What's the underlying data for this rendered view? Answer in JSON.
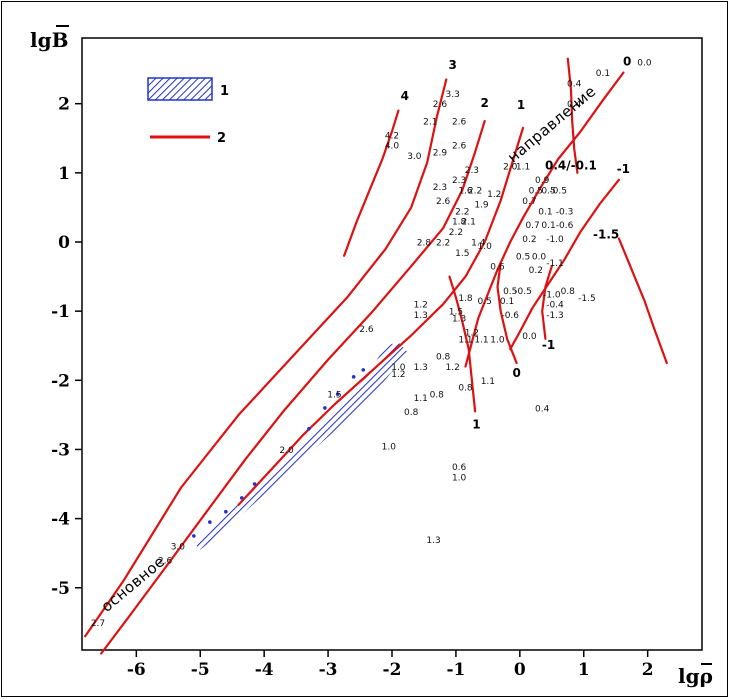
{
  "chart_data": {
    "type": "line",
    "xlabel": "lgρ",
    "ylabel": "lgB",
    "xlim": [
      -6.85,
      2.85
    ],
    "ylim": [
      -5.9,
      2.95
    ],
    "x_ticks": [
      -6,
      -5,
      -4,
      -3,
      -2,
      -1,
      0,
      1,
      2
    ],
    "y_ticks": [
      2,
      1,
      0,
      -1,
      -2,
      -3,
      -4,
      -5
    ],
    "colors": {
      "curve": "#dd1111",
      "hatch": "#2233cc",
      "text": "#000000"
    },
    "legend": [
      {
        "marker": "hatch",
        "label": "1"
      },
      {
        "marker": "line",
        "label": "2"
      }
    ],
    "side_labels": [
      {
        "text": "основное",
        "x": -6.0,
        "y": -5.0,
        "angle_deg": -40
      },
      {
        "text": "направление",
        "x": 0.55,
        "y": 1.65,
        "angle_deg": -40
      }
    ],
    "series": [
      {
        "name": "4",
        "label_x": -1.8,
        "label_y": 2.05,
        "points": [
          [
            -1.9,
            1.9
          ],
          [
            -2.0,
            1.6
          ],
          [
            -2.15,
            1.2
          ],
          [
            -2.35,
            0.75
          ],
          [
            -2.55,
            0.3
          ],
          [
            -2.75,
            -0.2
          ]
        ]
      },
      {
        "name": "3",
        "label_x": -1.05,
        "label_y": 2.5,
        "points": [
          [
            -1.15,
            2.35
          ],
          [
            -1.3,
            1.8
          ],
          [
            -1.45,
            1.15
          ],
          [
            -1.7,
            0.5
          ],
          [
            -2.1,
            -0.1
          ],
          [
            -2.7,
            -0.8
          ],
          [
            -3.5,
            -1.6
          ],
          [
            -4.4,
            -2.5
          ],
          [
            -5.3,
            -3.55
          ],
          [
            -6.2,
            -4.9
          ],
          [
            -6.8,
            -5.7
          ]
        ]
      },
      {
        "name": "2",
        "label_x": -0.55,
        "label_y": 1.95,
        "points": [
          [
            -0.55,
            1.75
          ],
          [
            -0.7,
            1.3
          ],
          [
            -0.9,
            0.75
          ],
          [
            -1.2,
            0.2
          ],
          [
            -1.7,
            -0.35
          ],
          [
            -2.3,
            -1.0
          ],
          [
            -3.0,
            -1.7
          ],
          [
            -3.7,
            -2.45
          ],
          [
            -4.3,
            -3.15
          ],
          [
            -4.9,
            -3.9
          ],
          [
            -5.5,
            -4.65
          ],
          [
            -6.1,
            -5.4
          ],
          [
            -6.55,
            -5.95
          ]
        ]
      },
      {
        "name": "1",
        "label_x": 0.02,
        "label_y": 1.92,
        "points": [
          [
            0.05,
            1.65
          ],
          [
            -0.1,
            1.2
          ],
          [
            -0.3,
            0.6
          ],
          [
            -0.55,
            0.0
          ],
          [
            -0.85,
            -0.5
          ],
          [
            -1.2,
            -0.9
          ],
          [
            -1.7,
            -1.35
          ],
          [
            -2.3,
            -1.85
          ],
          [
            -2.9,
            -2.35
          ],
          [
            -3.4,
            -2.8
          ],
          [
            -3.9,
            -3.3
          ],
          [
            -4.4,
            -3.8
          ]
        ]
      },
      {
        "name": "0",
        "label_x": 1.68,
        "label_y": 2.55,
        "points": [
          [
            1.62,
            2.45
          ],
          [
            1.3,
            2.05
          ],
          [
            0.95,
            1.6
          ],
          [
            0.6,
            1.2
          ],
          [
            0.3,
            0.75
          ],
          [
            0.05,
            0.35
          ],
          [
            -0.15,
            0.0
          ],
          [
            -0.35,
            -0.4
          ],
          [
            -0.5,
            -0.75
          ],
          [
            -0.65,
            -1.1
          ],
          [
            -0.75,
            -1.45
          ],
          [
            -0.85,
            -1.8
          ]
        ]
      },
      {
        "name": "-1",
        "label_x": 1.62,
        "label_y": 1.0,
        "points": [
          [
            1.55,
            0.9
          ],
          [
            1.25,
            0.55
          ],
          [
            0.95,
            0.15
          ],
          [
            0.7,
            -0.25
          ],
          [
            0.45,
            -0.6
          ],
          [
            0.2,
            -0.95
          ],
          [
            0.0,
            -1.3
          ],
          [
            -0.15,
            -1.55
          ]
        ]
      },
      {
        "name": "-1.5",
        "label_x": 1.35,
        "label_y": 0.05,
        "points": [
          [
            1.55,
            0.05
          ],
          [
            1.75,
            -0.4
          ],
          [
            1.95,
            -0.85
          ],
          [
            2.1,
            -1.25
          ],
          [
            2.3,
            -1.75
          ]
        ]
      },
      {
        "name": "1 (lower)",
        "label_x": -0.68,
        "label_y": -2.7,
        "points": [
          [
            -0.7,
            -2.45
          ],
          [
            -0.75,
            -2.0
          ],
          [
            -0.8,
            -1.55
          ],
          [
            -0.9,
            -1.15
          ],
          [
            -1.0,
            -0.8
          ],
          [
            -1.1,
            -0.5
          ]
        ]
      },
      {
        "name": "0 (lower)",
        "label_x": -0.05,
        "label_y": -1.95,
        "points": [
          [
            -0.05,
            -1.75
          ],
          [
            -0.2,
            -1.4
          ],
          [
            -0.3,
            -1.0
          ],
          [
            -0.35,
            -0.65
          ],
          [
            -0.3,
            -0.3
          ]
        ]
      },
      {
        "name": "-1 (lower)",
        "label_x": 0.45,
        "label_y": -1.55,
        "points": [
          [
            0.4,
            -1.4
          ],
          [
            0.35,
            -1.0
          ],
          [
            0.4,
            -0.65
          ],
          [
            0.5,
            -0.35
          ]
        ]
      },
      {
        "name": "0.4/-0.1",
        "label_x": 0.8,
        "label_y": 1.05,
        "points": [
          [
            0.75,
            2.65
          ],
          [
            0.8,
            2.2
          ],
          [
            0.82,
            1.75
          ],
          [
            0.85,
            1.35
          ],
          [
            0.9,
            1.0
          ]
        ]
      }
    ],
    "hatched_band": [
      [
        -5.1,
        -4.35
      ],
      [
        -4.6,
        -3.95
      ],
      [
        -4.0,
        -3.45
      ],
      [
        -3.4,
        -2.9
      ],
      [
        -2.9,
        -2.45
      ],
      [
        -2.4,
        -1.95
      ],
      [
        -2.1,
        -1.5
      ],
      [
        -1.9,
        -1.45
      ],
      [
        -1.75,
        -1.6
      ],
      [
        -2.2,
        -2.1
      ],
      [
        -2.8,
        -2.65
      ],
      [
        -3.4,
        -3.15
      ],
      [
        -4.0,
        -3.65
      ],
      [
        -4.6,
        -4.15
      ],
      [
        -5.0,
        -4.45
      ]
    ],
    "dots": [
      [
        -5.1,
        -4.25
      ],
      [
        -4.85,
        -4.05
      ],
      [
        -4.6,
        -3.9
      ],
      [
        -4.35,
        -3.7
      ],
      [
        -4.15,
        -3.5
      ],
      [
        -3.3,
        -2.7
      ],
      [
        -3.05,
        -2.4
      ],
      [
        -2.85,
        -2.2
      ],
      [
        -2.6,
        -1.95
      ],
      [
        -2.45,
        -1.85
      ]
    ],
    "annotations": [
      {
        "t": "0.0",
        "x": 1.95,
        "y": 2.55
      },
      {
        "t": "0.1",
        "x": 1.3,
        "y": 2.4
      },
      {
        "t": "0.4",
        "x": 0.85,
        "y": 2.25
      },
      {
        "t": "0.4",
        "x": 0.85,
        "y": 1.95
      },
      {
        "t": "3.3",
        "x": -1.05,
        "y": 2.1
      },
      {
        "t": "2.6",
        "x": -1.25,
        "y": 1.95
      },
      {
        "t": "2.1",
        "x": -1.4,
        "y": 1.7
      },
      {
        "t": "2.6",
        "x": -0.95,
        "y": 1.7
      },
      {
        "t": "4.2",
        "x": -2.0,
        "y": 1.5
      },
      {
        "t": "4.0",
        "x": -2.0,
        "y": 1.35
      },
      {
        "t": "2.9",
        "x": -1.25,
        "y": 1.25
      },
      {
        "t": "2.6",
        "x": -0.95,
        "y": 1.35
      },
      {
        "t": "3.0",
        "x": -1.65,
        "y": 1.2
      },
      {
        "t": "2.0",
        "x": -0.15,
        "y": 1.05
      },
      {
        "t": "1.1",
        "x": 0.05,
        "y": 1.05
      },
      {
        "t": "2.3",
        "x": -0.75,
        "y": 1.0
      },
      {
        "t": "2.3",
        "x": -0.95,
        "y": 0.85
      },
      {
        "t": "2.3",
        "x": -1.25,
        "y": 0.75
      },
      {
        "t": "1.6",
        "x": -0.85,
        "y": 0.7
      },
      {
        "t": "2.2",
        "x": -0.7,
        "y": 0.7
      },
      {
        "t": "1.2",
        "x": -0.4,
        "y": 0.65
      },
      {
        "t": "2.6",
        "x": -1.2,
        "y": 0.55
      },
      {
        "t": "1.9",
        "x": -0.6,
        "y": 0.5
      },
      {
        "t": "2.2",
        "x": -0.9,
        "y": 0.4
      },
      {
        "t": "2.1",
        "x": -0.8,
        "y": 0.25
      },
      {
        "t": "1.8",
        "x": -0.95,
        "y": 0.25
      },
      {
        "t": "2.2",
        "x": -1.0,
        "y": 0.1
      },
      {
        "t": "2.2",
        "x": -1.2,
        "y": -0.05
      },
      {
        "t": "2.8",
        "x": -1.5,
        "y": -0.05
      },
      {
        "t": "1.4",
        "x": -0.65,
        "y": -0.05
      },
      {
        "t": "1.0",
        "x": -0.55,
        "y": -0.1
      },
      {
        "t": "1.5",
        "x": -0.9,
        "y": -0.2
      },
      {
        "t": "0.9",
        "x": 0.35,
        "y": 0.85
      },
      {
        "t": "0.5",
        "x": 0.25,
        "y": 0.7
      },
      {
        "t": "0.5",
        "x": 0.45,
        "y": 0.7
      },
      {
        "t": "-0.5",
        "x": 0.6,
        "y": 0.7
      },
      {
        "t": "0.7",
        "x": 0.15,
        "y": 0.55
      },
      {
        "t": "0.1",
        "x": 0.4,
        "y": 0.4
      },
      {
        "t": "-0.3",
        "x": 0.7,
        "y": 0.4
      },
      {
        "t": "0.7",
        "x": 0.2,
        "y": 0.2
      },
      {
        "t": "0.1",
        "x": 0.45,
        "y": 0.2
      },
      {
        "t": "-0.6",
        "x": 0.7,
        "y": 0.2
      },
      {
        "t": "0.2",
        "x": 0.15,
        "y": 0.0
      },
      {
        "t": "-1.0",
        "x": 0.55,
        "y": 0.0
      },
      {
        "t": "0.5",
        "x": 0.05,
        "y": -0.25
      },
      {
        "t": "0.0",
        "x": 0.3,
        "y": -0.25
      },
      {
        "t": "-1.1",
        "x": 0.55,
        "y": -0.35
      },
      {
        "t": "0.2",
        "x": 0.25,
        "y": -0.45
      },
      {
        "t": "0.6",
        "x": -0.35,
        "y": -0.4
      },
      {
        "t": "0.5",
        "x": -0.15,
        "y": -0.75
      },
      {
        "t": "-0.5",
        "x": 0.05,
        "y": -0.75
      },
      {
        "t": "-1.0",
        "x": 0.5,
        "y": -0.8
      },
      {
        "t": "0.8",
        "x": 0.75,
        "y": -0.75
      },
      {
        "t": "-1.5",
        "x": 1.05,
        "y": -0.85
      },
      {
        "t": "0.5",
        "x": -0.55,
        "y": -0.9
      },
      {
        "t": "0.1",
        "x": -0.2,
        "y": -0.9
      },
      {
        "t": "-0.4",
        "x": 0.55,
        "y": -0.95
      },
      {
        "t": "-1.3",
        "x": 0.55,
        "y": -1.1
      },
      {
        "t": "-0.6",
        "x": -0.15,
        "y": -1.1
      },
      {
        "t": "0.0",
        "x": 0.15,
        "y": -1.4
      },
      {
        "t": "1.2",
        "x": -1.55,
        "y": -0.95
      },
      {
        "t": "1.3",
        "x": -1.55,
        "y": -1.1
      },
      {
        "t": "1.8",
        "x": -0.85,
        "y": -0.85
      },
      {
        "t": "1.5",
        "x": -1.0,
        "y": -1.05
      },
      {
        "t": "1.3",
        "x": -0.95,
        "y": -1.15
      },
      {
        "t": "1.2",
        "x": -0.75,
        "y": -1.35
      },
      {
        "t": "1.1",
        "x": -0.85,
        "y": -1.45
      },
      {
        "t": "1.1",
        "x": -0.6,
        "y": -1.45
      },
      {
        "t": "1.0",
        "x": -0.35,
        "y": -1.45
      },
      {
        "t": "2.6",
        "x": -2.4,
        "y": -1.3
      },
      {
        "t": "0.8",
        "x": -1.2,
        "y": -1.7
      },
      {
        "t": "1.3",
        "x": -1.55,
        "y": -1.85
      },
      {
        "t": "1.2",
        "x": -1.05,
        "y": -1.85
      },
      {
        "t": "1.0",
        "x": -1.9,
        "y": -1.85
      },
      {
        "t": "1.2",
        "x": -1.9,
        "y": -1.95
      },
      {
        "t": "1.1",
        "x": -0.5,
        "y": -2.05
      },
      {
        "t": "0.8",
        "x": -0.85,
        "y": -2.15
      },
      {
        "t": "0.8",
        "x": -1.3,
        "y": -2.25
      },
      {
        "t": "1.1",
        "x": -1.55,
        "y": -2.3
      },
      {
        "t": "0.8",
        "x": -1.7,
        "y": -2.5
      },
      {
        "t": "0.4",
        "x": 0.35,
        "y": -2.45
      },
      {
        "t": "1.0",
        "x": -2.05,
        "y": -3.0
      },
      {
        "t": "1.5",
        "x": -2.9,
        "y": -2.25
      },
      {
        "t": "2.0",
        "x": -3.65,
        "y": -3.05
      },
      {
        "t": "0.6",
        "x": -0.95,
        "y": -3.3
      },
      {
        "t": "1.0",
        "x": -0.95,
        "y": -3.45
      },
      {
        "t": "1.3",
        "x": -1.35,
        "y": -4.35
      },
      {
        "t": "3.0",
        "x": -5.35,
        "y": -4.45
      },
      {
        "t": "2.6",
        "x": -5.55,
        "y": -4.65
      },
      {
        "t": "2.7",
        "x": -6.6,
        "y": -5.55
      }
    ]
  }
}
